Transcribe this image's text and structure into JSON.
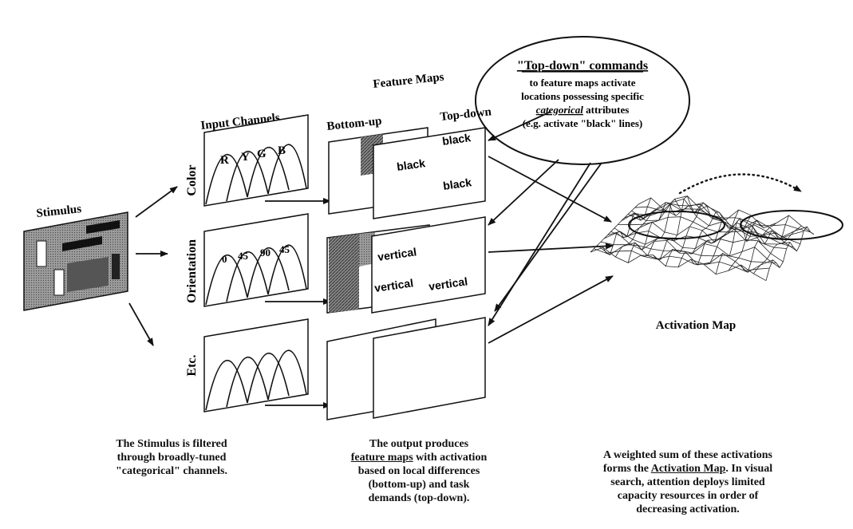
{
  "topdown_box": {
    "title": "\"Top-down\" commands",
    "line1": "to feature maps activate",
    "line2": "locations possessing specific",
    "line3_em": "categorical",
    "line3_rest": " attributes",
    "line4": "(e.g. activate \"black\" lines)"
  },
  "labels": {
    "feature_maps": "Feature Maps",
    "input_channels": "Input Channels",
    "bottom_up": "Bottom-up",
    "top_down": "Top-down",
    "stimulus": "Stimulus",
    "activation_map": "Activation Map"
  },
  "channels": [
    {
      "name": "Color",
      "tuning_labels": [
        "R",
        "Y",
        "G",
        "B"
      ],
      "topdown_words": [
        "black",
        "black",
        "black"
      ]
    },
    {
      "name": "Orientation",
      "tuning_labels": [
        "0",
        "45",
        "90",
        "45"
      ],
      "topdown_words": [
        "vertical",
        "vertical",
        "vertical"
      ]
    },
    {
      "name": "Etc.",
      "tuning_labels": [],
      "topdown_words": []
    }
  ],
  "captions": {
    "left": {
      "l1": "The Stimulus is filtered",
      "l2": "through broadly-tuned",
      "l3": "\"categorical\" channels."
    },
    "middle": {
      "l1": "The output produces",
      "l2_u": "feature maps",
      "l2_rest": " with activation",
      "l3": "based on local differences",
      "l4": "(bottom-up) and task",
      "l5": "demands (top-down)."
    },
    "right": {
      "l1": "A weighted sum of these activations",
      "l2_pre": "forms the ",
      "l2_u": "Activation Map",
      "l2_rest": ". In visual",
      "l3": "search, attention deploys limited",
      "l4": "capacity resources in order of",
      "l5": "decreasing activation."
    }
  }
}
